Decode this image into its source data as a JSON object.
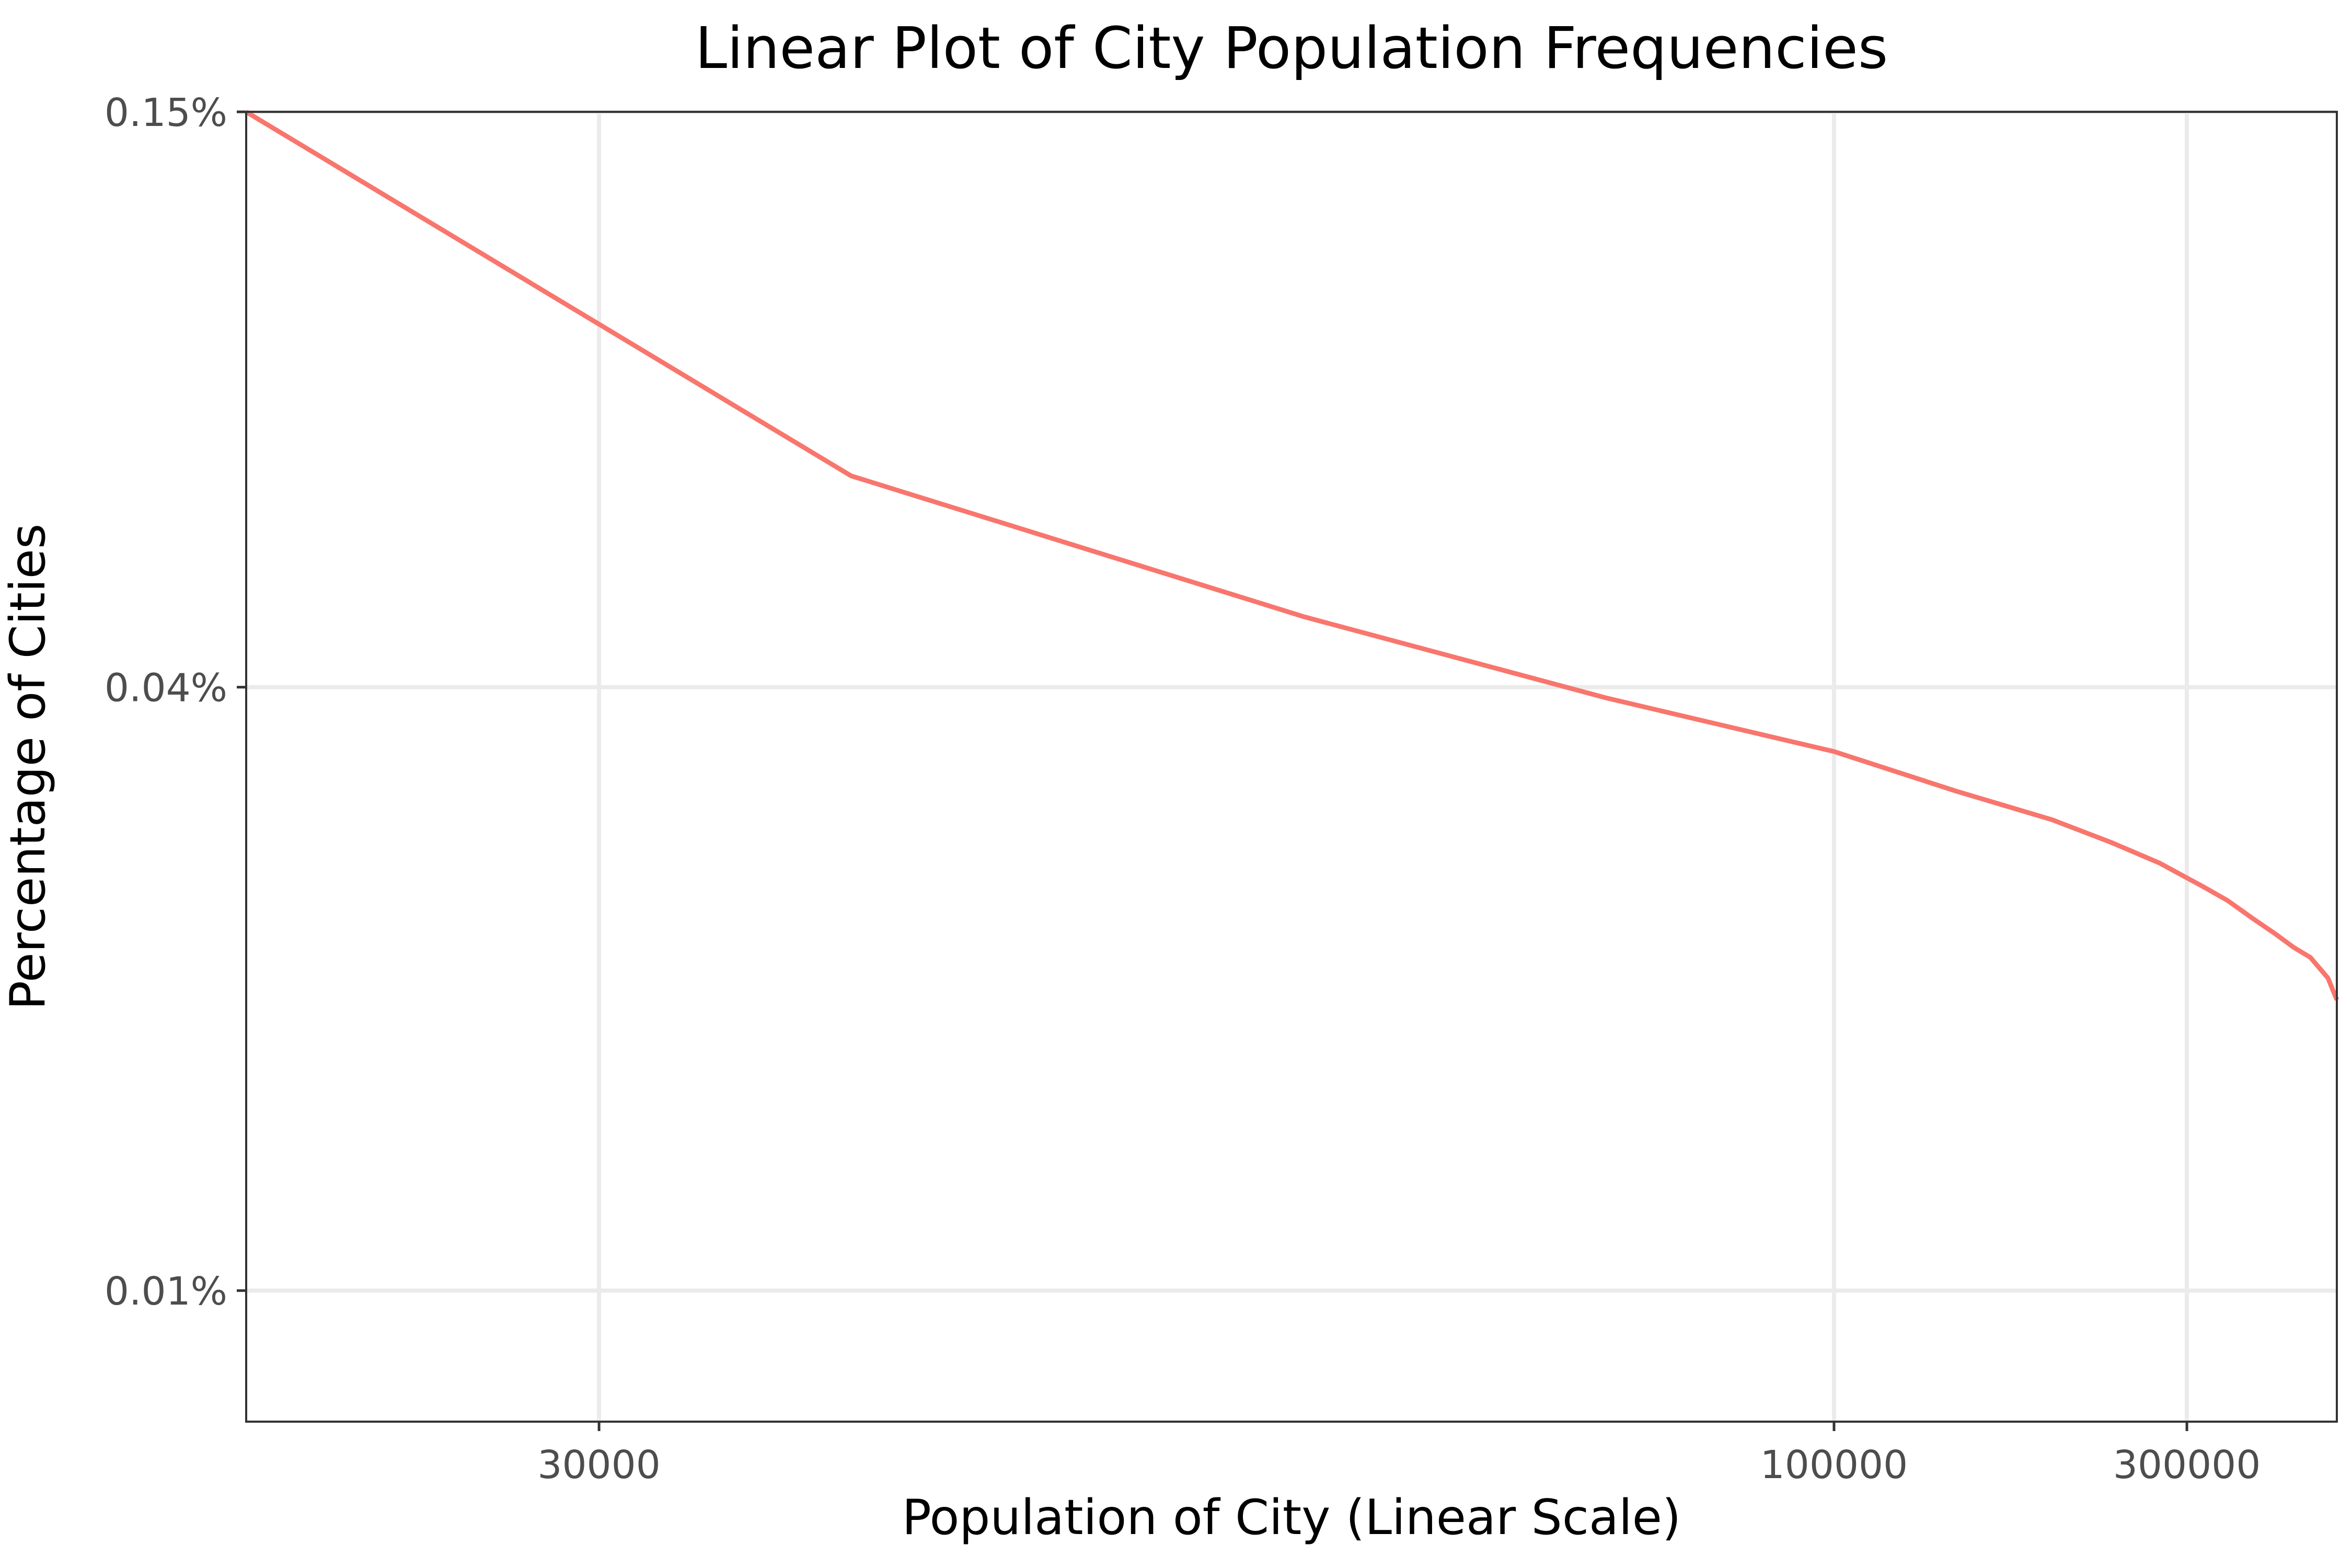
{
  "chart_data": {
    "type": "line",
    "title": "Linear Plot of City Population Frequencies",
    "xlabel": "Population of City (Linear Scale)",
    "ylabel": "Percentage of Cities",
    "x_scale": "reciprocal",
    "y_scale": "log",
    "xlim": [
      25000,
      2000000
    ],
    "ylim": [
      0.0074,
      0.15
    ],
    "x_ticks": [
      {
        "value": 30000,
        "label": "30000"
      },
      {
        "value": 100000,
        "label": "100000"
      },
      {
        "value": 300000,
        "label": "300000"
      }
    ],
    "y_ticks": [
      {
        "value": 0.01,
        "label": "0.01%"
      },
      {
        "value": 0.04,
        "label": "0.04%"
      },
      {
        "value": 0.15,
        "label": "0.15%"
      }
    ],
    "grid": true,
    "legend": "none",
    "series": [
      {
        "color": "#f8766d",
        "x": [
          25000,
          35000,
          50000,
          70000,
          100000,
          130000,
          170000,
          210000,
          260000,
          330000,
          390000,
          480000,
          600000,
          760000,
          1000000,
          1500000,
          2000000
        ],
        "y": [
          0.15,
          0.065,
          0.047,
          0.039,
          0.0345,
          0.0315,
          0.0295,
          0.028,
          0.0267,
          0.0253,
          0.0245,
          0.0235,
          0.0227,
          0.022,
          0.0215,
          0.0205,
          0.0195
        ]
      }
    ]
  }
}
